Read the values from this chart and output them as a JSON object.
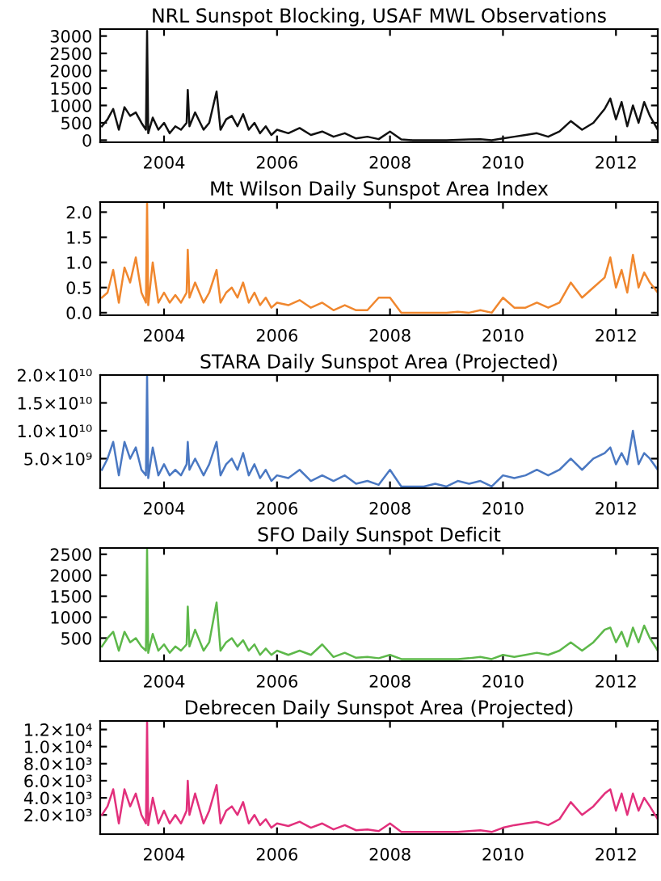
{
  "chart_data": [
    {
      "type": "line",
      "title": "NRL Sunspot Blocking, USAF MWL Observations",
      "color": "#111111",
      "x": [
        2002.9,
        2003.0,
        2003.1,
        2003.2,
        2003.3,
        2003.4,
        2003.5,
        2003.6,
        2003.68,
        2003.7,
        2003.72,
        2003.8,
        2003.9,
        2004.0,
        2004.1,
        2004.2,
        2004.3,
        2004.4,
        2004.42,
        2004.45,
        2004.55,
        2004.7,
        2004.8,
        2004.93,
        2005.0,
        2005.1,
        2005.2,
        2005.3,
        2005.4,
        2005.5,
        2005.6,
        2005.7,
        2005.8,
        2005.9,
        2006.0,
        2006.2,
        2006.4,
        2006.6,
        2006.8,
        2007.0,
        2007.2,
        2007.4,
        2007.6,
        2007.8,
        2008.0,
        2008.2,
        2008.4,
        2008.6,
        2008.8,
        2009.0,
        2009.2,
        2009.4,
        2009.6,
        2009.8,
        2010.0,
        2010.2,
        2010.4,
        2010.6,
        2010.8,
        2011.0,
        2011.2,
        2011.4,
        2011.6,
        2011.8,
        2011.9,
        2012.0,
        2012.1,
        2012.2,
        2012.3,
        2012.4,
        2012.5,
        2012.6,
        2012.74
      ],
      "values": [
        400,
        600,
        900,
        300,
        950,
        700,
        800,
        500,
        300,
        3150,
        200,
        650,
        300,
        500,
        200,
        400,
        300,
        500,
        1450,
        400,
        800,
        300,
        500,
        1400,
        300,
        600,
        700,
        400,
        750,
        300,
        500,
        200,
        400,
        150,
        300,
        200,
        350,
        150,
        250,
        100,
        200,
        50,
        100,
        30,
        250,
        20,
        0,
        0,
        0,
        0,
        10,
        20,
        30,
        0,
        50,
        100,
        150,
        200,
        100,
        250,
        550,
        300,
        500,
        900,
        1200,
        600,
        1100,
        400,
        1000,
        500,
        1100,
        700,
        300
      ],
      "xlim": [
        2002.87,
        2012.74
      ],
      "xticks": [
        2004,
        2006,
        2008,
        2010,
        2012
      ],
      "ylim": [
        -60,
        3200
      ],
      "yticks": [
        0,
        500,
        1000,
        1500,
        2000,
        2500,
        3000
      ]
    },
    {
      "type": "line",
      "title": "Mt Wilson Daily Sunspot Area Index",
      "color": "#f0872e",
      "x": [
        2002.9,
        2003.0,
        2003.1,
        2003.2,
        2003.3,
        2003.4,
        2003.5,
        2003.6,
        2003.68,
        2003.7,
        2003.72,
        2003.8,
        2003.9,
        2004.0,
        2004.1,
        2004.2,
        2004.3,
        2004.4,
        2004.42,
        2004.45,
        2004.55,
        2004.7,
        2004.8,
        2004.93,
        2005.0,
        2005.1,
        2005.2,
        2005.3,
        2005.4,
        2005.5,
        2005.6,
        2005.7,
        2005.8,
        2005.9,
        2006.0,
        2006.2,
        2006.4,
        2006.6,
        2006.8,
        2007.0,
        2007.2,
        2007.4,
        2007.6,
        2007.8,
        2008.0,
        2008.2,
        2008.4,
        2008.6,
        2008.8,
        2009.0,
        2009.2,
        2009.4,
        2009.6,
        2009.8,
        2010.0,
        2010.2,
        2010.4,
        2010.6,
        2010.8,
        2011.0,
        2011.2,
        2011.4,
        2011.6,
        2011.8,
        2011.9,
        2012.0,
        2012.1,
        2012.2,
        2012.3,
        2012.4,
        2012.5,
        2012.6,
        2012.74
      ],
      "values": [
        0.3,
        0.4,
        0.85,
        0.2,
        0.9,
        0.6,
        1.1,
        0.4,
        0.2,
        2.2,
        0.15,
        1.0,
        0.2,
        0.4,
        0.2,
        0.35,
        0.2,
        0.4,
        1.25,
        0.3,
        0.6,
        0.2,
        0.4,
        0.85,
        0.2,
        0.4,
        0.5,
        0.3,
        0.6,
        0.2,
        0.4,
        0.15,
        0.3,
        0.1,
        0.2,
        0.15,
        0.25,
        0.1,
        0.2,
        0.05,
        0.15,
        0.05,
        0.05,
        0.3,
        0.3,
        0.0,
        0.0,
        0.0,
        0.0,
        0.0,
        0.02,
        0.0,
        0.05,
        0.0,
        0.3,
        0.1,
        0.1,
        0.2,
        0.1,
        0.2,
        0.6,
        0.3,
        0.5,
        0.7,
        1.1,
        0.5,
        0.85,
        0.4,
        1.15,
        0.5,
        0.8,
        0.6,
        0.4
      ],
      "xlim": [
        2002.87,
        2012.74
      ],
      "xticks": [
        2004,
        2006,
        2008,
        2010,
        2012
      ],
      "ylim": [
        -0.05,
        2.2
      ],
      "yticks": [
        {
          "value": 0,
          "label": "0.0"
        },
        {
          "value": 0.5,
          "label": "0.5"
        },
        {
          "value": 1.0,
          "label": "1.0"
        },
        {
          "value": 1.5,
          "label": "1.5"
        },
        {
          "value": 2.0,
          "label": "2.0"
        }
      ]
    },
    {
      "type": "line",
      "title": "STARA Daily Sunspot Area (Projected)",
      "color": "#4a78c2",
      "x": [
        2002.9,
        2003.0,
        2003.1,
        2003.2,
        2003.3,
        2003.4,
        2003.5,
        2003.6,
        2003.68,
        2003.7,
        2003.72,
        2003.8,
        2003.9,
        2004.0,
        2004.1,
        2004.2,
        2004.3,
        2004.4,
        2004.42,
        2004.45,
        2004.55,
        2004.7,
        2004.8,
        2004.93,
        2005.0,
        2005.1,
        2005.2,
        2005.3,
        2005.4,
        2005.5,
        2005.6,
        2005.7,
        2005.8,
        2005.9,
        2006.0,
        2006.2,
        2006.4,
        2006.6,
        2006.8,
        2007.0,
        2007.2,
        2007.4,
        2007.6,
        2007.8,
        2008.0,
        2008.2,
        2008.4,
        2008.6,
        2008.8,
        2009.0,
        2009.2,
        2009.4,
        2009.6,
        2009.8,
        2010.0,
        2010.2,
        2010.4,
        2010.6,
        2010.8,
        2011.0,
        2011.2,
        2011.4,
        2011.6,
        2011.8,
        2011.9,
        2012.0,
        2012.1,
        2012.2,
        2012.3,
        2012.4,
        2012.5,
        2012.6,
        2012.74
      ],
      "values": [
        3000000000.0,
        5000000000.0,
        8000000000.0,
        2000000000.0,
        8000000000.0,
        5000000000.0,
        7000000000.0,
        3000000000.0,
        2000000000.0,
        20000000000.0,
        1500000000.0,
        7000000000.0,
        2000000000.0,
        4000000000.0,
        2000000000.0,
        3000000000.0,
        2000000000.0,
        4000000000.0,
        8000000000.0,
        3000000000.0,
        5000000000.0,
        2000000000.0,
        4000000000.0,
        8000000000.0,
        2000000000.0,
        4000000000.0,
        5000000000.0,
        3000000000.0,
        6000000000.0,
        2000000000.0,
        4000000000.0,
        1500000000.0,
        3000000000.0,
        1000000000.0,
        2000000000.0,
        1500000000.0,
        3000000000.0,
        1000000000.0,
        2000000000.0,
        1000000000.0,
        2000000000.0,
        500000000.0,
        1000000000.0,
        300000000.0,
        3000000000.0,
        0,
        0,
        0,
        500000000.0,
        0,
        1000000000.0,
        500000000.0,
        1000000000.0,
        0,
        2000000000.0,
        1500000000.0,
        2000000000.0,
        3000000000.0,
        2000000000.0,
        3000000000.0,
        5000000000.0,
        3000000000.0,
        5000000000.0,
        6000000000.0,
        7000000000.0,
        4000000000.0,
        6000000000.0,
        4000000000.0,
        10000000000.0,
        4000000000.0,
        6000000000.0,
        5000000000.0,
        3000000000.0
      ],
      "xlim": [
        2002.87,
        2012.74
      ],
      "xticks": [
        2004,
        2006,
        2008,
        2010,
        2012
      ],
      "ylim": [
        -300000000.0,
        20000000000.0
      ],
      "yticks": [
        {
          "value": 5000000000.0,
          "label": "5.0×10⁹"
        },
        {
          "value": 10000000000.0,
          "label": "1.0×10¹⁰"
        },
        {
          "value": 15000000000.0,
          "label": "1.5×10¹⁰"
        },
        {
          "value": 20000000000.0,
          "label": "2.0×10¹⁰"
        }
      ]
    },
    {
      "type": "line",
      "title": "SFO Daily Sunspot Deficit",
      "color": "#5db84a",
      "x": [
        2002.9,
        2003.0,
        2003.1,
        2003.2,
        2003.3,
        2003.4,
        2003.5,
        2003.6,
        2003.68,
        2003.7,
        2003.72,
        2003.8,
        2003.9,
        2004.0,
        2004.1,
        2004.2,
        2004.3,
        2004.4,
        2004.42,
        2004.45,
        2004.55,
        2004.7,
        2004.8,
        2004.93,
        2005.0,
        2005.1,
        2005.2,
        2005.3,
        2005.4,
        2005.5,
        2005.6,
        2005.7,
        2005.8,
        2005.9,
        2006.0,
        2006.2,
        2006.4,
        2006.6,
        2006.8,
        2007.0,
        2007.2,
        2007.4,
        2007.6,
        2007.8,
        2008.0,
        2008.2,
        2008.4,
        2008.6,
        2008.8,
        2009.0,
        2009.2,
        2009.4,
        2009.6,
        2009.8,
        2010.0,
        2010.2,
        2010.4,
        2010.6,
        2010.8,
        2011.0,
        2011.2,
        2011.4,
        2011.6,
        2011.8,
        2011.9,
        2012.0,
        2012.1,
        2012.2,
        2012.3,
        2012.4,
        2012.5,
        2012.6,
        2012.74
      ],
      "values": [
        300,
        500,
        650,
        200,
        650,
        400,
        500,
        300,
        200,
        2650,
        150,
        600,
        200,
        350,
        150,
        300,
        200,
        350,
        1250,
        300,
        700,
        200,
        400,
        1350,
        200,
        400,
        500,
        300,
        450,
        200,
        350,
        100,
        250,
        100,
        200,
        100,
        200,
        100,
        350,
        50,
        150,
        30,
        50,
        20,
        100,
        0,
        0,
        0,
        0,
        0,
        0,
        20,
        50,
        0,
        100,
        50,
        100,
        150,
        100,
        200,
        400,
        200,
        400,
        700,
        750,
        400,
        650,
        300,
        750,
        400,
        800,
        500,
        200
      ],
      "xlim": [
        2002.87,
        2012.74
      ],
      "xticks": [
        2004,
        2006,
        2008,
        2010,
        2012
      ],
      "ylim": [
        -50,
        2650
      ],
      "yticks": [
        500,
        1000,
        1500,
        2000,
        2500
      ]
    },
    {
      "type": "line",
      "title": "Debrecen Daily Sunspot Area (Projected)",
      "color": "#e2307c",
      "x": [
        2002.9,
        2003.0,
        2003.1,
        2003.2,
        2003.3,
        2003.4,
        2003.5,
        2003.6,
        2003.68,
        2003.7,
        2003.72,
        2003.8,
        2003.9,
        2004.0,
        2004.1,
        2004.2,
        2004.3,
        2004.4,
        2004.42,
        2004.45,
        2004.55,
        2004.7,
        2004.8,
        2004.93,
        2005.0,
        2005.1,
        2005.2,
        2005.3,
        2005.4,
        2005.5,
        2005.6,
        2005.7,
        2005.8,
        2005.9,
        2006.0,
        2006.2,
        2006.4,
        2006.6,
        2006.8,
        2007.0,
        2007.2,
        2007.4,
        2007.6,
        2007.8,
        2008.0,
        2008.2,
        2008.4,
        2008.6,
        2008.8,
        2009.0,
        2009.2,
        2009.4,
        2009.6,
        2009.8,
        2010.0,
        2010.2,
        2010.4,
        2010.6,
        2010.8,
        2011.0,
        2011.2,
        2011.4,
        2011.6,
        2011.8,
        2011.9,
        2012.0,
        2012.1,
        2012.2,
        2012.3,
        2012.4,
        2012.5,
        2012.6,
        2012.74
      ],
      "values": [
        2000,
        3000,
        5000,
        1000,
        5000,
        3000,
        4500,
        2000,
        1000,
        13000,
        800,
        4000,
        1000,
        2500,
        1000,
        2000,
        1000,
        2500,
        6000,
        2000,
        4500,
        1000,
        2500,
        5500,
        1000,
        2500,
        3000,
        2000,
        3500,
        1000,
        2000,
        800,
        1500,
        500,
        1000,
        700,
        1200,
        500,
        1000,
        300,
        800,
        200,
        300,
        100,
        1000,
        0,
        0,
        0,
        0,
        0,
        0,
        100,
        200,
        0,
        500,
        800,
        1000,
        1200,
        800,
        1500,
        3500,
        2000,
        3000,
        4500,
        5000,
        2500,
        4500,
        2000,
        4500,
        2500,
        4000,
        3000,
        1500
      ],
      "xlim": [
        2002.87,
        2012.74
      ],
      "xticks": [
        2004,
        2006,
        2008,
        2010,
        2012
      ],
      "ylim": [
        -250,
        13000
      ],
      "yticks": [
        {
          "value": 2000,
          "label": "2.0×10³"
        },
        {
          "value": 4000,
          "label": "4.0×10³"
        },
        {
          "value": 6000,
          "label": "6.0×10³"
        },
        {
          "value": 8000,
          "label": "8.0×10³"
        },
        {
          "value": 10000,
          "label": "1.0×10⁴"
        },
        {
          "value": 12000,
          "label": "1.2×10⁴"
        }
      ]
    }
  ]
}
